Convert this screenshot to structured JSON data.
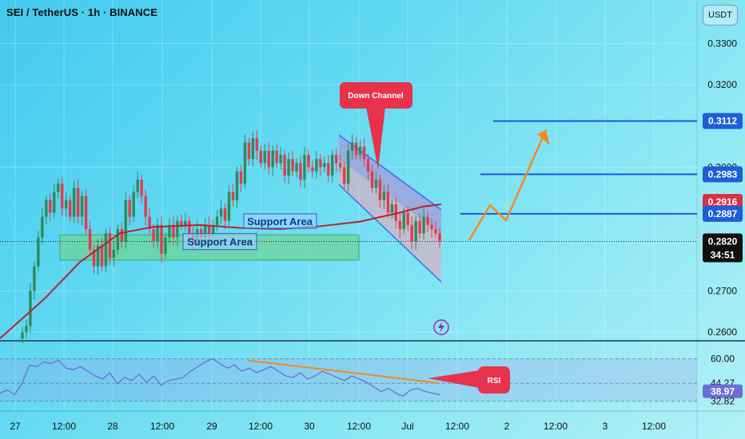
{
  "header": {
    "title": "SEI / TetherUS · 1h · BINANCE",
    "currency_button": "USDT"
  },
  "colors": {
    "up": "#2e8b57",
    "down": "#e63950",
    "ma": "#b3242f",
    "channel": "#3a6df0",
    "support_fill": "#6fd39b",
    "level_line": "#1d56e0",
    "projection": "#f5891f",
    "rsi_line": "#6b6fd4",
    "callout": "#e6324b",
    "price_badge": "#1f5ed6",
    "ma_badge": "#d93043",
    "live_badge": "#0f0f0f"
  },
  "chart_data": {
    "type": "candlestick",
    "y_axis": {
      "range": [
        0.2585,
        0.339
      ],
      "ticks": [
        "0.3300",
        "0.3200",
        "0.3000",
        "0.2700",
        "0.2600"
      ],
      "ticks_values": [
        0.33,
        0.32,
        0.3,
        0.27,
        0.26
      ]
    },
    "x_axis": {
      "ticks": [
        "27",
        "12:00",
        "28",
        "12:00",
        "29",
        "12:00",
        "30",
        "12:00",
        "Jul",
        "12:00",
        "2",
        "12:00",
        "3",
        "12:00"
      ]
    },
    "ohlc_closes": [
      0.26,
      0.2615,
      0.27,
      0.276,
      0.283,
      0.288,
      0.292,
      0.289,
      0.294,
      0.296,
      0.29,
      0.292,
      0.288,
      0.295,
      0.288,
      0.293,
      0.285,
      0.28,
      0.276,
      0.281,
      0.276,
      0.284,
      0.278,
      0.28,
      0.285,
      0.282,
      0.292,
      0.288,
      0.294,
      0.297,
      0.293,
      0.288,
      0.285,
      0.282,
      0.286,
      0.279,
      0.283,
      0.286,
      0.283,
      0.287,
      0.286,
      0.287,
      0.284,
      0.282,
      0.285,
      0.283,
      0.286,
      0.284,
      0.286,
      0.288,
      0.29,
      0.287,
      0.294,
      0.292,
      0.299,
      0.296,
      0.306,
      0.302,
      0.307,
      0.304,
      0.301,
      0.304,
      0.3,
      0.304,
      0.301,
      0.303,
      0.298,
      0.302,
      0.299,
      0.301,
      0.297,
      0.303,
      0.3,
      0.299,
      0.302,
      0.3,
      0.301,
      0.298,
      0.303,
      0.301,
      0.3,
      0.296,
      0.304,
      0.306,
      0.303,
      0.305,
      0.302,
      0.299,
      0.295,
      0.297,
      0.292,
      0.294,
      0.289,
      0.291,
      0.287,
      0.285,
      0.289,
      0.286,
      0.282,
      0.287,
      0.284,
      0.288,
      0.286,
      0.285,
      0.284,
      0.282
    ],
    "moving_average": [
      [
        0,
        0.2585
      ],
      [
        55,
        0.268
      ],
      [
        100,
        0.277
      ],
      [
        150,
        0.284
      ],
      [
        190,
        0.2855
      ],
      [
        250,
        0.286
      ],
      [
        300,
        0.2853
      ],
      [
        350,
        0.285
      ],
      [
        400,
        0.2857
      ],
      [
        450,
        0.2868
      ],
      [
        500,
        0.289
      ],
      [
        530,
        0.2905
      ],
      [
        552,
        0.291
      ]
    ],
    "rsi": {
      "levels_printed": [
        "60.00",
        "44.27",
        "38.97",
        "32.82"
      ],
      "values": [
        38,
        40,
        37,
        44,
        56,
        55,
        58,
        57,
        59,
        54,
        53,
        55,
        52,
        49,
        47,
        51,
        44,
        48,
        46,
        50,
        45,
        49,
        43,
        46,
        47,
        48,
        52,
        55,
        58,
        60,
        57,
        54,
        56,
        52,
        54,
        51,
        53,
        55,
        52,
        49,
        48,
        51,
        47,
        49,
        52,
        50,
        48,
        46,
        49,
        47,
        45,
        42,
        39,
        41,
        38,
        36,
        40,
        41,
        39,
        38,
        37
      ]
    },
    "price_levels": [
      {
        "label": "0.3112",
        "value": 0.3112,
        "style": "level"
      },
      {
        "label": "0.2983",
        "value": 0.2983,
        "style": "level"
      },
      {
        "label": "0.2916",
        "value": 0.2916,
        "style": "ma"
      },
      {
        "label": "0.2887",
        "value": 0.2887,
        "style": "level"
      },
      {
        "label": "0.2820",
        "value": 0.282,
        "style": "live",
        "countdown": "34:51"
      }
    ],
    "annotations": {
      "down_channel": "Down Channel",
      "support_upper": "Support Area",
      "support_lower": "Support Area",
      "rsi_callout": "RSI"
    }
  }
}
